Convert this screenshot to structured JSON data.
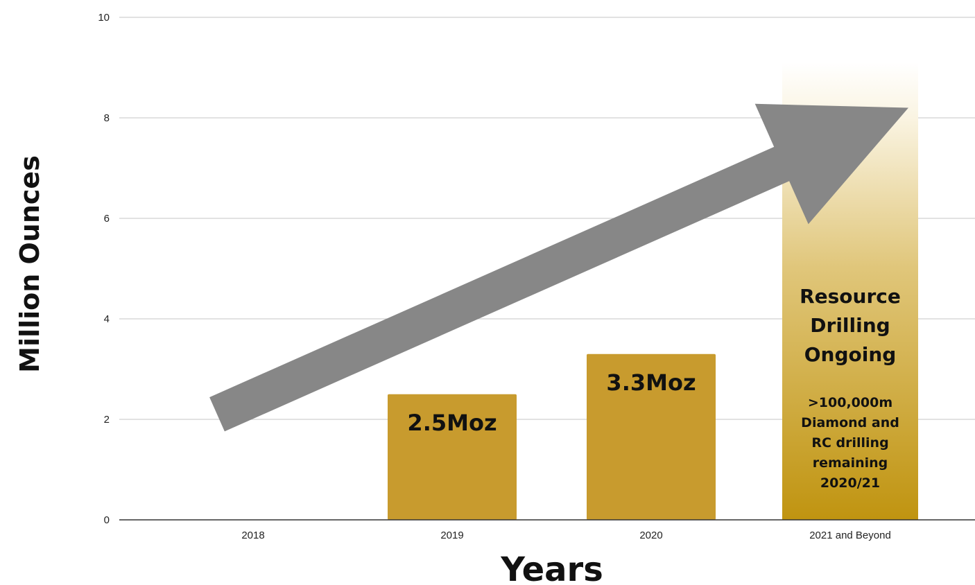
{
  "chart_data": {
    "type": "bar",
    "xlabel": "Years",
    "ylabel": "Million Ounces",
    "ylim": [
      0,
      10
    ],
    "yticks": [
      0,
      2,
      4,
      6,
      8,
      10
    ],
    "grid": true,
    "categories": [
      "2018",
      "2019",
      "2020",
      "2021 and Beyond"
    ],
    "values": [
      null,
      2.5,
      3.3,
      null
    ],
    "bar_labels": [
      "",
      "2.5Moz",
      "3.3Moz",
      ""
    ],
    "projected_bar": {
      "category": "2021 and Beyond",
      "style": "gradient-fade",
      "heading_lines": [
        "Resource",
        "Drilling",
        "Ongoing"
      ],
      "note_lines": [
        ">100,000m",
        "Diamond and",
        "RC drilling",
        "remaining",
        "2020/21"
      ]
    },
    "trend_arrow": {
      "from": {
        "x": "2018",
        "y": 2.1
      },
      "to": {
        "x": "2021 and Beyond",
        "y": 8.2
      },
      "color": "#878787"
    }
  },
  "colors": {
    "bar": "#C89B2E",
    "projected_bar": "#C09410",
    "grid": "#D0D0D0",
    "axis": "#333333",
    "arrow": "#878787"
  }
}
